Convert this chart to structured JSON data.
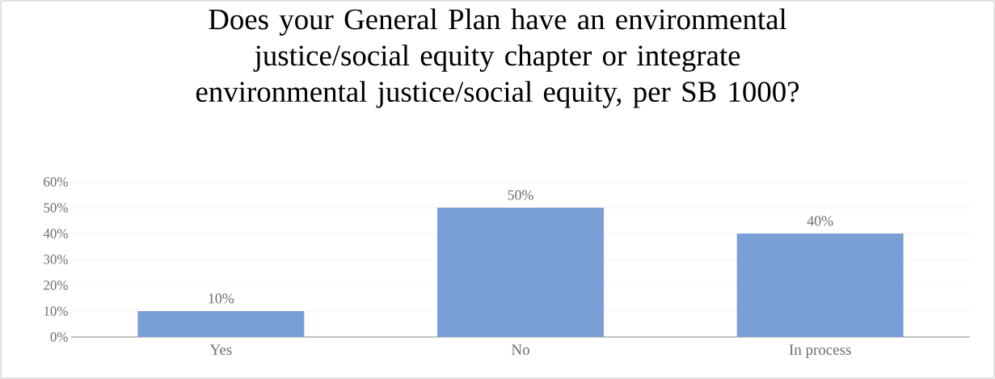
{
  "chart_data": {
    "type": "bar",
    "title": "Does your General Plan have an environmental justice/social equity chapter or integrate environmental justice/social equity, per SB 1000?",
    "categories": [
      "Yes",
      "No",
      "In process"
    ],
    "values": [
      10,
      50,
      40
    ],
    "value_labels": [
      "10%",
      "50%",
      "40%"
    ],
    "color": "#7a9fd6",
    "ylim": [
      0,
      60
    ],
    "yticks": [
      {
        "value": 0,
        "label": "0%"
      },
      {
        "value": 10,
        "label": "10%"
      },
      {
        "value": 20,
        "label": "20%"
      },
      {
        "value": 30,
        "label": "30%"
      },
      {
        "value": 40,
        "label": "40%"
      },
      {
        "value": 50,
        "label": "50%"
      },
      {
        "value": 60,
        "label": "60%"
      }
    ],
    "grid": "y"
  }
}
